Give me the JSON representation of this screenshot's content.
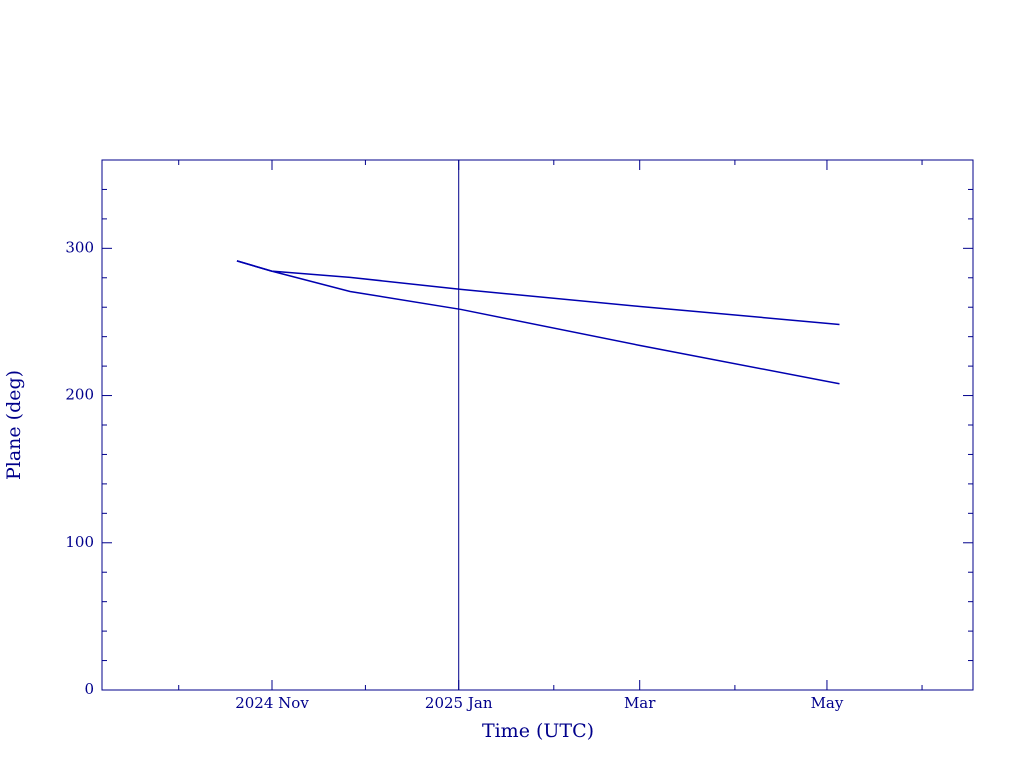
{
  "chart_data": {
    "type": "line",
    "xlabel": "Time (UTC)",
    "ylabel": "Plane (deg)",
    "x": [
      2024.802,
      2024.833,
      2024.903,
      2025.002,
      2025.162,
      2025.34
    ],
    "series": [
      {
        "color": "#0000b0",
        "values": [
          291.5,
          284.5,
          270.7,
          258.5,
          234,
          208
        ]
      },
      {
        "color": "#0000b0",
        "values": [
          291.5,
          284.5,
          280.3,
          272.1,
          260.5,
          248.3
        ]
      }
    ],
    "xlim": [
      2024.6815,
      2025.4592
    ],
    "xticks": [
      {
        "value": 2024.8333,
        "label": "2024 Nov"
      },
      {
        "value": 2025.0,
        "label": "2025 Jan"
      },
      {
        "value": 2025.1616,
        "label": "Mar"
      },
      {
        "value": 2025.3288,
        "label": "May"
      }
    ],
    "xminor_ticks": [
      2024.75,
      2024.9167,
      2025.0849,
      2025.2466,
      2025.4137
    ],
    "ylim": [
      0,
      360
    ],
    "yticks": [
      0,
      100,
      200,
      300
    ],
    "yminor_ticks": [
      20,
      40,
      60,
      80,
      120,
      140,
      160,
      180,
      220,
      240,
      260,
      280,
      320,
      340
    ],
    "vline": 2025.0,
    "axis_color": "#00008b"
  }
}
